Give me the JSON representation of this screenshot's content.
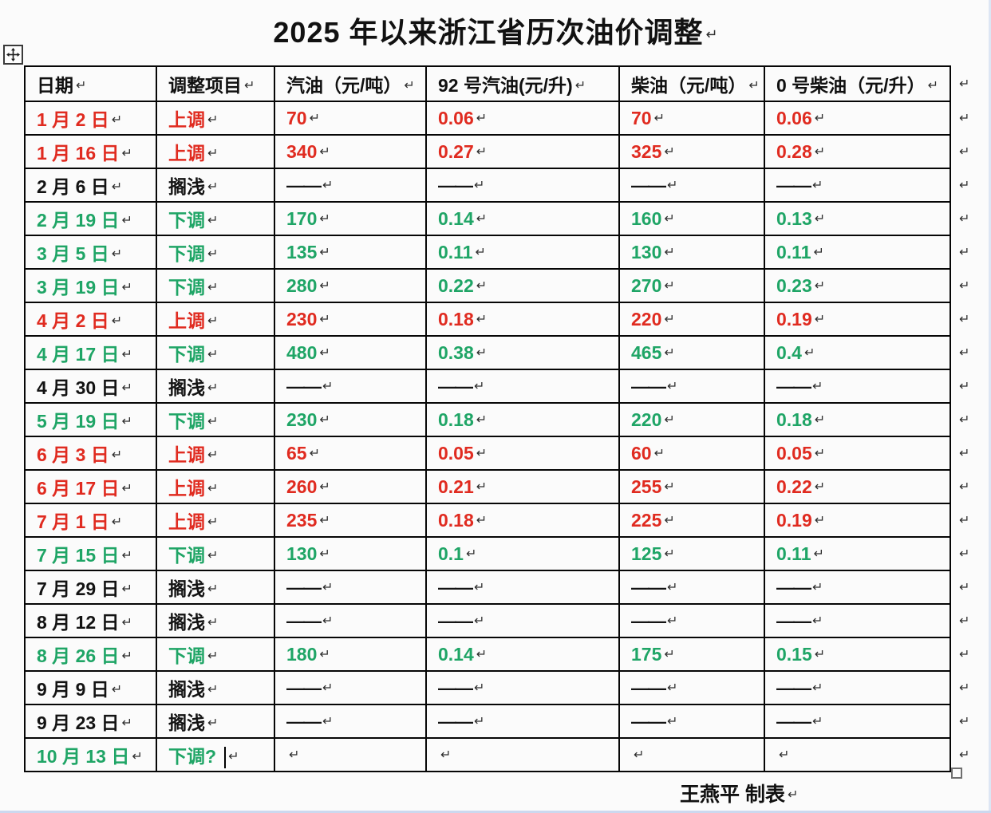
{
  "page": {
    "title": "2025 年以来浙江省历次油价调整",
    "footer": "王燕平  制表",
    "paragraph_mark": "↵"
  },
  "colors": {
    "increase": "#e02b20",
    "decrease": "#1fa566",
    "neutral": "#131313"
  },
  "table": {
    "headers": [
      "日期",
      "调整项目",
      "汽油（元/吨）",
      "92 号汽油(元/升)",
      "柴油（元/吨）",
      "0 号柴油（元/升）"
    ],
    "rows": [
      {
        "date": "1 月 2 日",
        "action": "上调",
        "tone": "up",
        "values": [
          "70",
          "0.06",
          "70",
          "0.06"
        ]
      },
      {
        "date": "1 月 16 日",
        "action": "上调",
        "tone": "up",
        "values": [
          "340",
          "0.27",
          "325",
          "0.28"
        ]
      },
      {
        "date": "2 月 6 日",
        "action": "搁浅",
        "tone": "hold",
        "values": [
          "——",
          "——",
          "——",
          "——"
        ]
      },
      {
        "date": "2 月 19 日",
        "action": "下调",
        "tone": "down",
        "values": [
          "170",
          "0.14",
          "160",
          "0.13"
        ]
      },
      {
        "date": "3 月 5 日",
        "action": "下调",
        "tone": "down",
        "values": [
          "135",
          "0.11",
          "130",
          "0.11"
        ]
      },
      {
        "date": "3 月 19 日",
        "action": "下调",
        "tone": "down",
        "values": [
          "280",
          "0.22",
          "270",
          "0.23"
        ]
      },
      {
        "date": "4 月 2 日",
        "action": "上调",
        "tone": "up",
        "values": [
          "230",
          "0.18",
          "220",
          "0.19"
        ]
      },
      {
        "date": "4 月 17 日",
        "action": "下调",
        "tone": "down",
        "values": [
          "480",
          "0.38",
          "465",
          "0.4"
        ]
      },
      {
        "date": "4 月 30 日",
        "action": "搁浅",
        "tone": "hold",
        "values": [
          "——",
          "——",
          "——",
          "——"
        ]
      },
      {
        "date": "5 月 19 日",
        "action": "下调",
        "tone": "down",
        "values": [
          "230",
          "0.18",
          "220",
          "0.18"
        ]
      },
      {
        "date": "6 月 3 日",
        "action": "上调",
        "tone": "up",
        "values": [
          "65",
          "0.05",
          "60",
          "0.05"
        ]
      },
      {
        "date": "6 月 17 日",
        "action": "上调",
        "tone": "up",
        "values": [
          "260",
          "0.21",
          "255",
          "0.22"
        ]
      },
      {
        "date": "7 月 1 日",
        "action": "上调",
        "tone": "up",
        "values": [
          "235",
          "0.18",
          "225",
          "0.19"
        ]
      },
      {
        "date": "7 月 15 日",
        "action": "下调",
        "tone": "down",
        "values": [
          "130",
          "0.1",
          "125",
          "0.11"
        ]
      },
      {
        "date": "7 月 29 日",
        "action": "搁浅",
        "tone": "hold",
        "values": [
          "——",
          "——",
          "——",
          "——"
        ]
      },
      {
        "date": "8 月 12 日",
        "action": "搁浅",
        "tone": "hold",
        "values": [
          "——",
          "——",
          "——",
          "——"
        ]
      },
      {
        "date": "8 月 26 日",
        "action": "下调",
        "tone": "down",
        "values": [
          "180",
          "0.14",
          "175",
          "0.15"
        ]
      },
      {
        "date": "9 月 9 日",
        "action": "搁浅",
        "tone": "hold",
        "values": [
          "——",
          "——",
          "——",
          "——"
        ]
      },
      {
        "date": "9 月 23 日",
        "action": "搁浅",
        "tone": "hold",
        "values": [
          "——",
          "——",
          "——",
          "——"
        ]
      },
      {
        "date": "10 月 13 日",
        "action": "下调?",
        "tone": "down",
        "values": [
          "",
          "",
          "",
          ""
        ],
        "caret": true
      }
    ]
  }
}
